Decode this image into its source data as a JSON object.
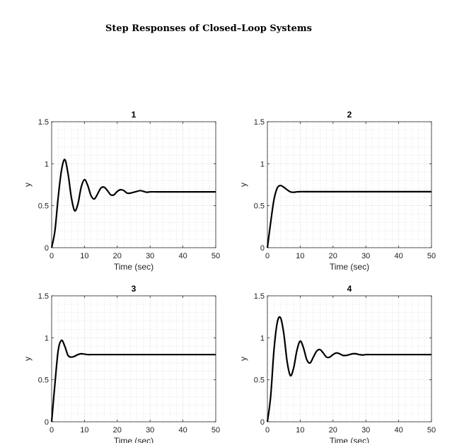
{
  "figure": {
    "title": "Step Responses of Closed–Loop Systems",
    "colors": {
      "line": "#000000",
      "grid_minor": "#d4d4d4",
      "grid_major": "#c8c8c8",
      "axes": "#262626"
    }
  },
  "chart_data": [
    {
      "type": "line",
      "title": "1",
      "xlabel": "Time (sec)",
      "ylabel": "y",
      "xlim": [
        0,
        50
      ],
      "ylim": [
        0,
        1.5
      ],
      "xticks": [
        0,
        10,
        20,
        30,
        40,
        50
      ],
      "yticks": [
        0,
        0.5,
        1,
        1.5
      ],
      "ytick_labels": [
        "0",
        "0.5",
        "1",
        "1.5"
      ],
      "grid": true,
      "minor_grid": true,
      "series": [
        {
          "x": [
            0,
            1,
            2,
            3,
            4,
            5,
            6,
            7,
            8,
            9,
            10,
            11,
            12,
            13,
            14,
            15,
            16,
            17,
            18,
            19,
            20,
            21,
            22,
            23,
            24,
            25,
            26,
            27,
            28,
            29,
            30,
            32,
            35,
            40,
            45,
            50
          ],
          "values": [
            0,
            0.2,
            0.6,
            0.92,
            1.05,
            0.88,
            0.6,
            0.44,
            0.52,
            0.72,
            0.81,
            0.74,
            0.62,
            0.58,
            0.64,
            0.71,
            0.72,
            0.68,
            0.63,
            0.63,
            0.67,
            0.69,
            0.68,
            0.65,
            0.65,
            0.66,
            0.67,
            0.68,
            0.67,
            0.66,
            0.665,
            0.665,
            0.665,
            0.665,
            0.665,
            0.665
          ]
        }
      ]
    },
    {
      "type": "line",
      "title": "2",
      "xlabel": "Time (sec)",
      "ylabel": "y",
      "xlim": [
        0,
        50
      ],
      "ylim": [
        0,
        1.5
      ],
      "xticks": [
        0,
        10,
        20,
        30,
        40,
        50
      ],
      "yticks": [
        0,
        0.5,
        1,
        1.5
      ],
      "ytick_labels": [
        "0",
        "0.5",
        "1",
        "1.5"
      ],
      "grid": true,
      "minor_grid": true,
      "series": [
        {
          "x": [
            0,
            1,
            2,
            3,
            4,
            5,
            6,
            7,
            8,
            9,
            10,
            12,
            15,
            20,
            30,
            40,
            50
          ],
          "values": [
            0,
            0.3,
            0.57,
            0.71,
            0.74,
            0.72,
            0.69,
            0.665,
            0.66,
            0.665,
            0.667,
            0.667,
            0.667,
            0.667,
            0.667,
            0.667,
            0.667
          ]
        }
      ]
    },
    {
      "type": "line",
      "title": "3",
      "xlabel": "Time (sec)",
      "ylabel": "y",
      "xlim": [
        0,
        50
      ],
      "ylim": [
        0,
        1.5
      ],
      "xticks": [
        0,
        10,
        20,
        30,
        40,
        50
      ],
      "yticks": [
        0,
        0.5,
        1,
        1.5
      ],
      "ytick_labels": [
        "0",
        "0.5",
        "1",
        "1.5"
      ],
      "grid": true,
      "minor_grid": true,
      "series": [
        {
          "x": [
            0,
            1,
            2,
            3,
            4,
            5,
            6,
            7,
            8,
            9,
            10,
            11,
            12,
            14,
            16,
            20,
            30,
            40,
            50
          ],
          "values": [
            0,
            0.45,
            0.85,
            0.97,
            0.9,
            0.79,
            0.77,
            0.78,
            0.8,
            0.81,
            0.805,
            0.8,
            0.8,
            0.8,
            0.8,
            0.8,
            0.8,
            0.8,
            0.8
          ]
        }
      ]
    },
    {
      "type": "line",
      "title": "4",
      "xlabel": "Time (sec)",
      "ylabel": "y",
      "xlim": [
        0,
        50
      ],
      "ylim": [
        0,
        1.5
      ],
      "xticks": [
        0,
        10,
        20,
        30,
        40,
        50
      ],
      "yticks": [
        0,
        0.5,
        1,
        1.5
      ],
      "ytick_labels": [
        "0",
        "0.5",
        "1",
        "1.5"
      ],
      "grid": true,
      "minor_grid": true,
      "series": [
        {
          "x": [
            0,
            1,
            2,
            3,
            4,
            5,
            6,
            7,
            8,
            9,
            10,
            11,
            12,
            13,
            14,
            15,
            16,
            17,
            18,
            19,
            20,
            21,
            22,
            23,
            24,
            25,
            26,
            27,
            28,
            29,
            30,
            32,
            34,
            36,
            38,
            40,
            45,
            50
          ],
          "values": [
            0,
            0.3,
            0.85,
            1.18,
            1.24,
            1.05,
            0.72,
            0.55,
            0.64,
            0.85,
            0.96,
            0.88,
            0.74,
            0.7,
            0.77,
            0.84,
            0.86,
            0.82,
            0.77,
            0.77,
            0.8,
            0.82,
            0.81,
            0.79,
            0.79,
            0.8,
            0.81,
            0.81,
            0.8,
            0.795,
            0.8,
            0.8,
            0.8,
            0.8,
            0.8,
            0.8,
            0.8,
            0.8
          ]
        }
      ]
    }
  ]
}
